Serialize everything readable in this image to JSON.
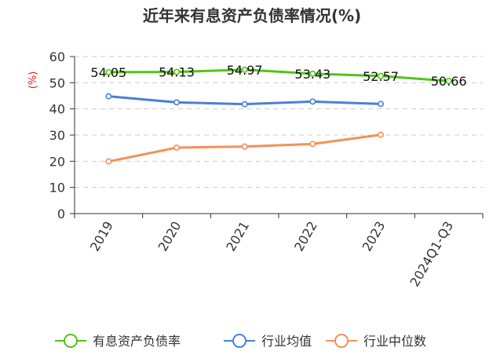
{
  "chart_data": {
    "type": "line",
    "title": "近年来有息资产负债率情况(%)",
    "unit_label": "(%)",
    "categories": [
      "2019",
      "2020",
      "2021",
      "2022",
      "2023",
      "2024Q1-Q3"
    ],
    "ylim": [
      0,
      60
    ],
    "yticks": [
      0,
      10,
      20,
      30,
      40,
      50,
      60
    ],
    "grid": true,
    "legend_position": "bottom",
    "series": [
      {
        "name": "有息资产负债率",
        "color": "#52c41a",
        "values": [
          54.05,
          54.13,
          54.97,
          53.43,
          52.57,
          50.66
        ],
        "labels": [
          "54.05",
          "54.13",
          "54.97",
          "53.43",
          "52.57",
          "50.66"
        ]
      },
      {
        "name": "行业均值",
        "color": "#4a7fdb",
        "values": [
          44.8,
          42.5,
          41.8,
          42.8,
          41.9,
          null
        ]
      },
      {
        "name": "行业中位数",
        "color": "#f4905a",
        "values": [
          19.9,
          25.2,
          25.6,
          26.6,
          30.1,
          null
        ]
      }
    ]
  }
}
